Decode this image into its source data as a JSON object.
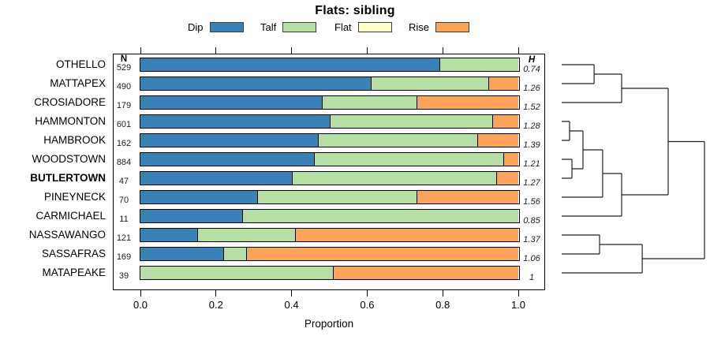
{
  "title": "Flats: sibling",
  "axis": {
    "xlabel": "Proportion",
    "ticks": [
      "0.0",
      "0.2",
      "0.4",
      "0.6",
      "0.8",
      "1.0"
    ]
  },
  "columns": {
    "n_header": "N",
    "h_header": "H"
  },
  "chart_data": {
    "type": "bar",
    "orientation": "horizontal-stacked",
    "title": "Flats: sibling",
    "xlabel": "Proportion",
    "xlim": [
      0,
      1
    ],
    "categories": [
      "OTHELLO",
      "MATTAPEX",
      "CROSIADORE",
      "HAMMONTON",
      "HAMBROOK",
      "WOODSTOWN",
      "BUTLERTOWN",
      "PINEYNECK",
      "CARMICHAEL",
      "NASSAWANGO",
      "SASSAFRAS",
      "MATAPEAKE"
    ],
    "bold_category": "BUTLERTOWN",
    "n_values": [
      529,
      490,
      179,
      601,
      162,
      884,
      47,
      70,
      11,
      121,
      169,
      39
    ],
    "h_values": [
      "0.74",
      "1.26",
      "1.52",
      "1.28",
      "1.39",
      "1.21",
      "1.27",
      "1.56",
      "0.85",
      "1.37",
      "1.06",
      "1"
    ],
    "series": [
      {
        "name": "Dip",
        "color": "#3882b8",
        "values": [
          0.79,
          0.61,
          0.48,
          0.5,
          0.47,
          0.46,
          0.4,
          0.31,
          0.27,
          0.15,
          0.22,
          0
        ]
      },
      {
        "name": "Talf",
        "color": "#b5dfa4",
        "values": [
          0.21,
          0.31,
          0.25,
          0.43,
          0.42,
          0.5,
          0.54,
          0.42,
          0.73,
          0.26,
          0.06,
          0.51
        ]
      },
      {
        "name": "Flat",
        "color": "#ffffc8",
        "values": [
          0,
          0,
          0,
          0,
          0,
          0,
          0,
          0,
          0,
          0,
          0,
          0
        ]
      },
      {
        "name": "Rise",
        "color": "#fca459",
        "values": [
          0,
          0.08,
          0.27,
          0.07,
          0.11,
          0.04,
          0.06,
          0.27,
          0,
          0.59,
          0.72,
          0.49
        ]
      }
    ],
    "legend_position": "top"
  },
  "dendrogram": {
    "orientation": "right",
    "tree": {
      "h": 1.0,
      "a": {
        "h": 0.746,
        "a": {
          "h": 0.42,
          "a": {
            "h": 0.227,
            "a": {
              "leaf": 0
            },
            "b": {
              "leaf": 1
            }
          },
          "b": {
            "leaf": 2
          }
        },
        "b": {
          "h": 0.42,
          "a": {
            "h": 0.287,
            "a": {
              "h": 0.149,
              "a": {
                "h": 0.055,
                "a": {
                  "leaf": 3
                },
                "b": {
                  "leaf": 4
                }
              },
              "b": {
                "h": 0.072,
                "a": {
                  "leaf": 5
                },
                "b": {
                  "leaf": 6
                }
              }
            },
            "b": {
              "leaf": 7
            }
          },
          "b": {
            "leaf": 8
          }
        }
      },
      "b": {
        "h": 0.564,
        "a": {
          "h": 0.265,
          "a": {
            "leaf": 9
          },
          "b": {
            "leaf": 10
          }
        },
        "b": {
          "leaf": 11
        }
      }
    },
    "line_color": "#222222"
  }
}
